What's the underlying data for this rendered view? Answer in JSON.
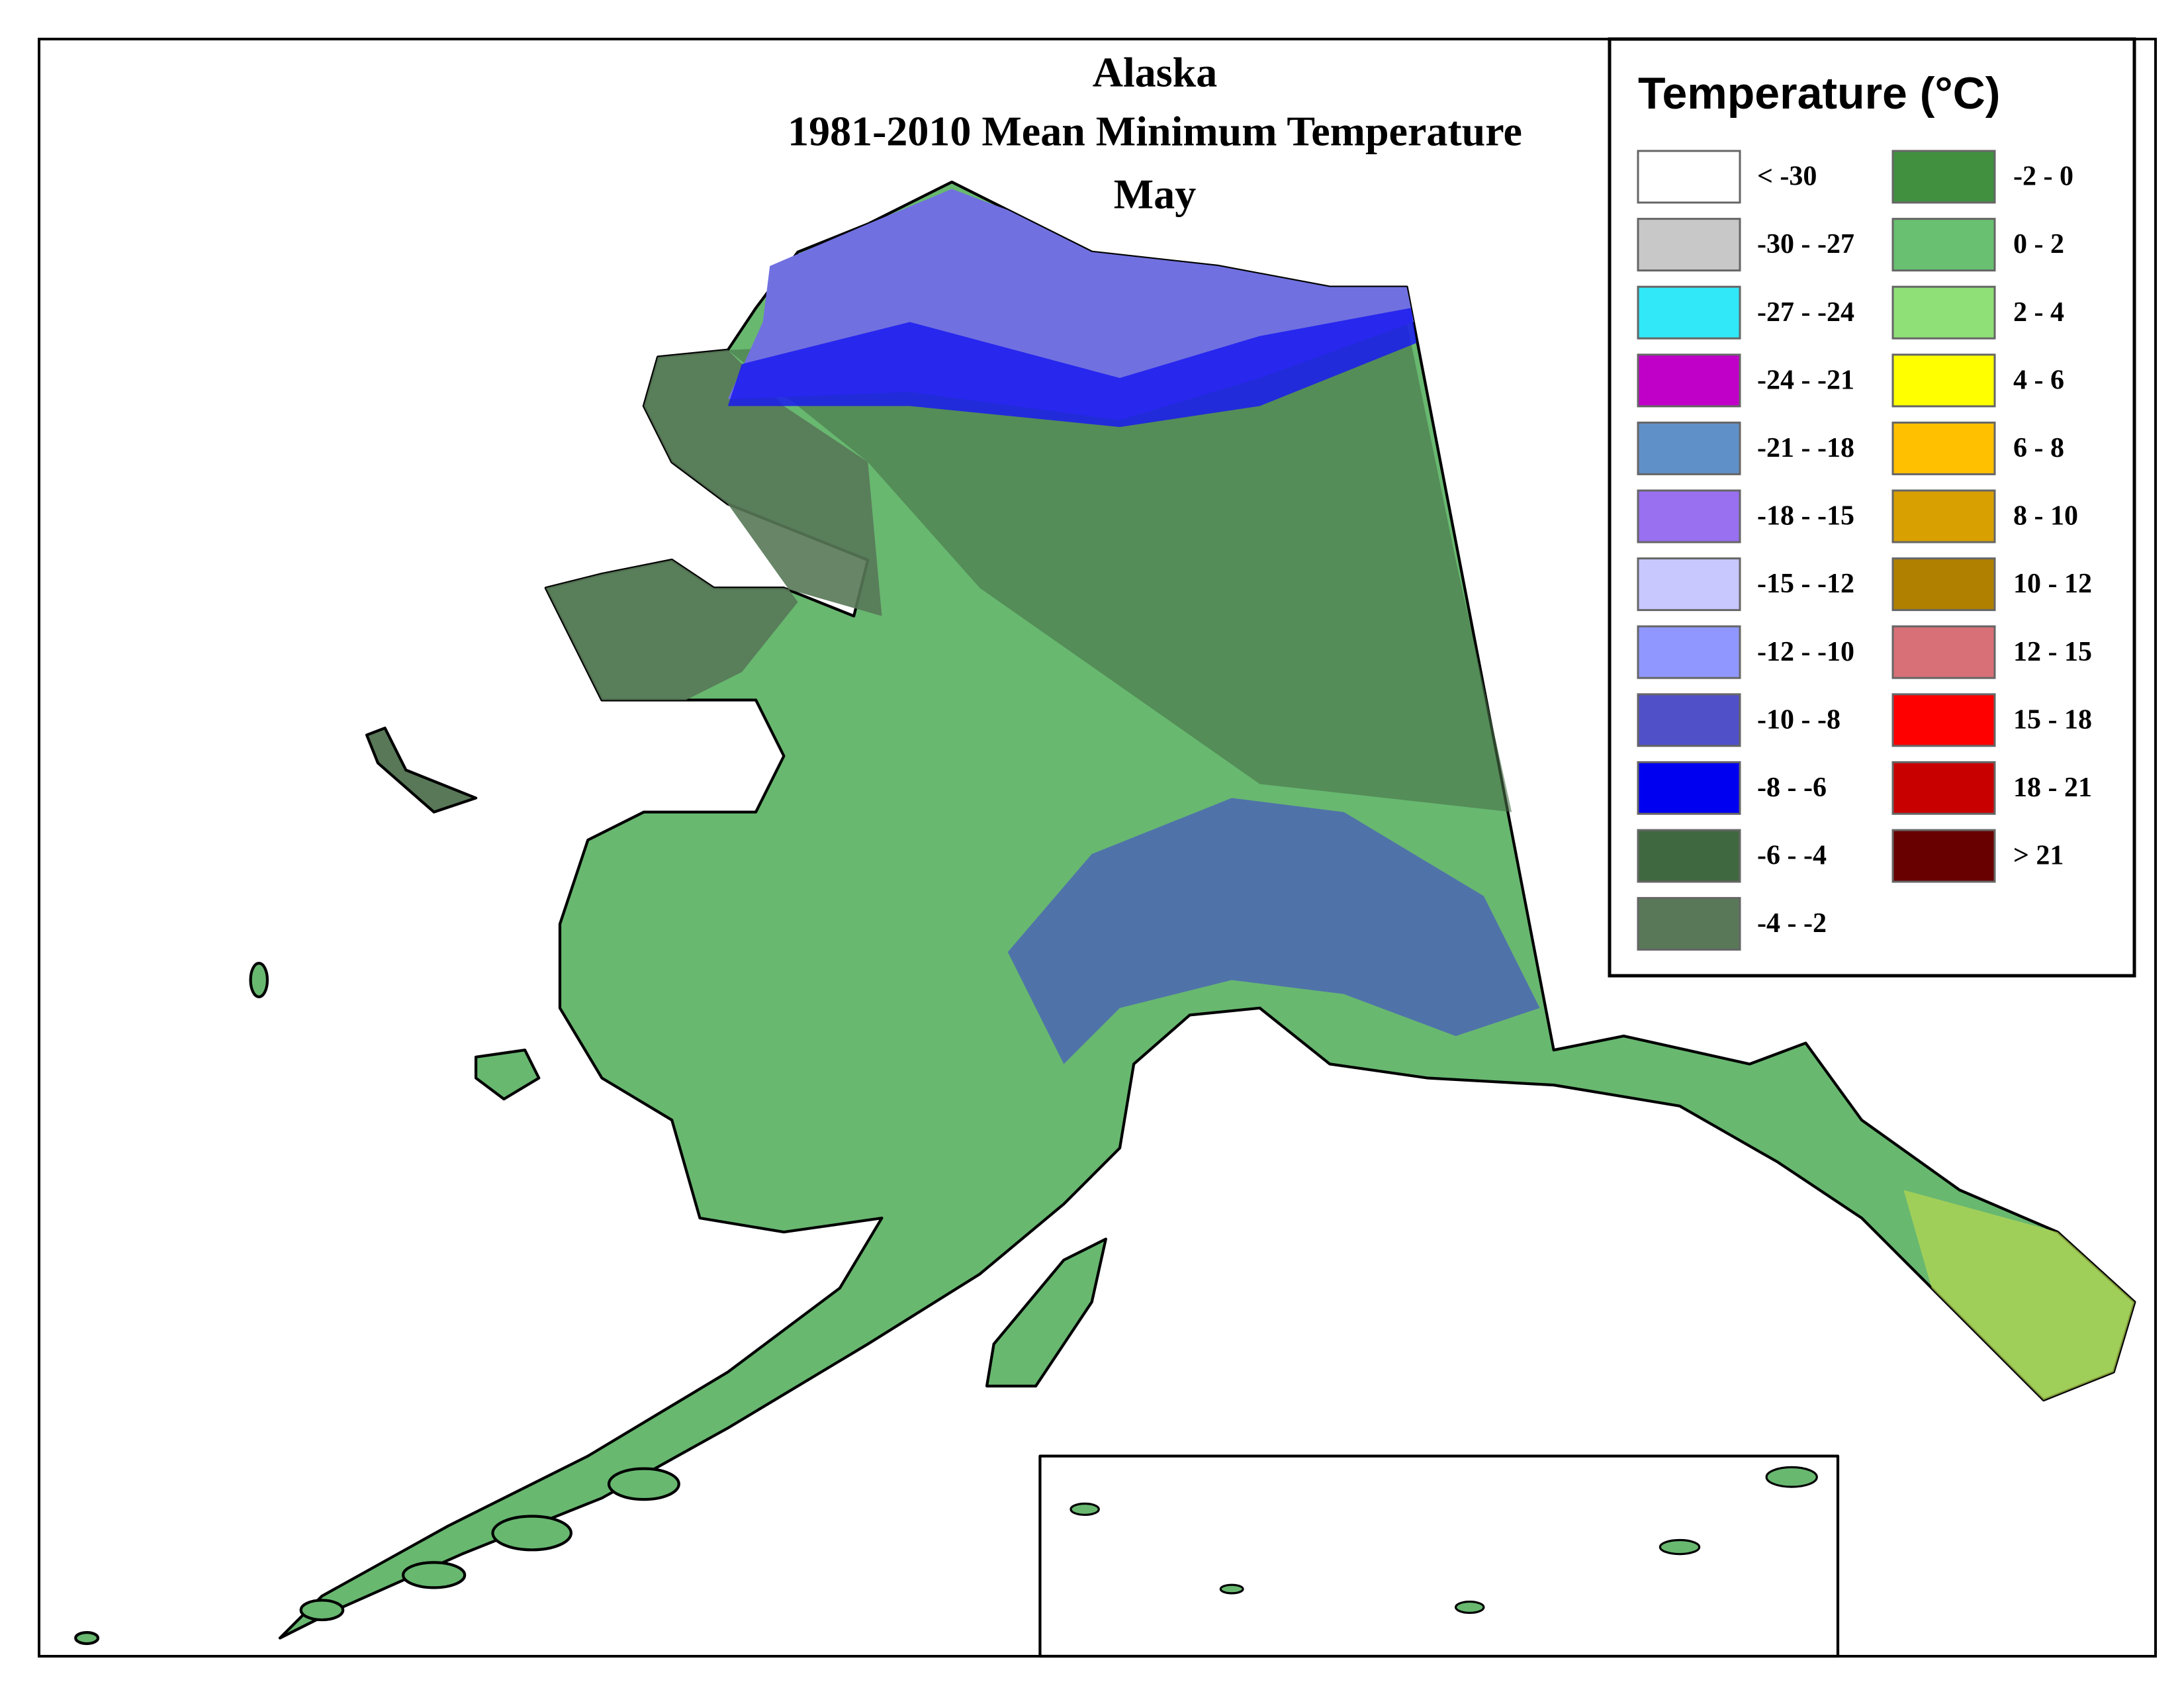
{
  "title": [
    "Alaska",
    "1981-2010 Mean Minimum Temperature",
    "May"
  ],
  "legend": {
    "title": "Temperature (°C)",
    "items": [
      {
        "label": "< -30",
        "color": "#ffffff"
      },
      {
        "label": "-30 - -27",
        "color": "#c8c8c8"
      },
      {
        "label": "-27 - -24",
        "color": "#30e8f8"
      },
      {
        "label": "-24 - -21",
        "color": "#c000c8"
      },
      {
        "label": "-21 - -18",
        "color": "#6090c8"
      },
      {
        "label": "-18 - -15",
        "color": "#9870f0"
      },
      {
        "label": "-15 - -12",
        "color": "#c8c8ff"
      },
      {
        "label": "-12 - -10",
        "color": "#9098ff"
      },
      {
        "label": "-10 - -8",
        "color": "#5050c8"
      },
      {
        "label": "-8 - -6",
        "color": "#0000f0"
      },
      {
        "label": "-6 - -4",
        "color": "#406840"
      },
      {
        "label": "-4 - -2",
        "color": "#587858"
      },
      {
        "label": "-2 - 0",
        "color": "#409040"
      },
      {
        "label": "0 - 2",
        "color": "#68c070"
      },
      {
        "label": "2 - 4",
        "color": "#90e078"
      },
      {
        "label": "4 - 6",
        "color": "#ffff00"
      },
      {
        "label": "6 - 8",
        "color": "#ffc000"
      },
      {
        "label": "8 - 10",
        "color": "#d8a000"
      },
      {
        "label": "10 - 12",
        "color": "#b08000"
      },
      {
        "label": "12 - 15",
        "color": "#d87078"
      },
      {
        "label": "15 - 18",
        "color": "#ff0000"
      },
      {
        "label": "18 - 21",
        "color": "#c80000"
      },
      {
        "label": "> 21",
        "color": "#680000"
      }
    ]
  }
}
